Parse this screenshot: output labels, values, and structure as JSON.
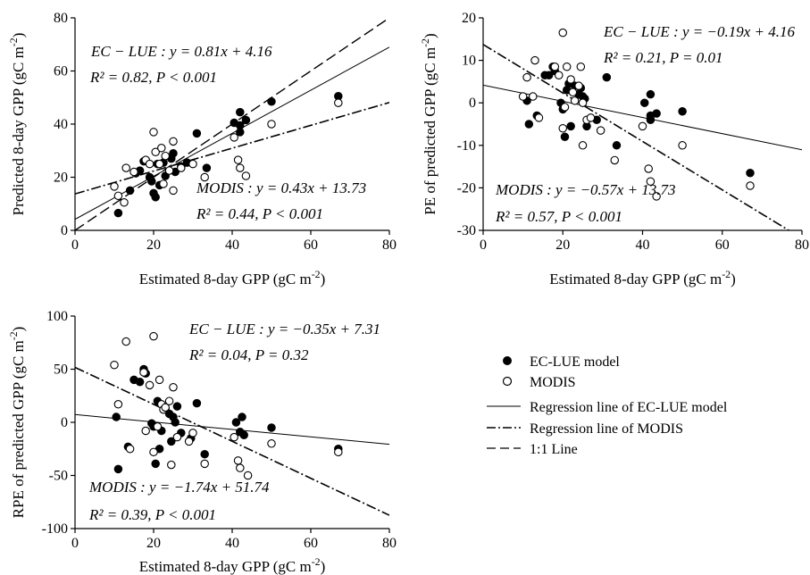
{
  "chart_data": [
    {
      "type": "scatter",
      "xlabel": "Estimated 8-day GPP (gC m-2)",
      "ylabel": "Predicted 8-day GPP (gC m-2)",
      "xlim": [
        0,
        80
      ],
      "ylim": [
        0,
        80
      ],
      "xticks": [
        "0",
        "20",
        "40",
        "60",
        "80"
      ],
      "yticks": [
        "0",
        "20",
        "40",
        "60",
        "80"
      ],
      "series": [
        {
          "name": "EC-LUE model",
          "points": [
            [
              11,
              6.5
            ],
            [
              14,
              15
            ],
            [
              15.5,
              21.5
            ],
            [
              16.5,
              22.5
            ],
            [
              17.5,
              26
            ],
            [
              19,
              20
            ],
            [
              19.5,
              18.5
            ],
            [
              20,
              14
            ],
            [
              20.5,
              12.5
            ],
            [
              21,
              25
            ],
            [
              21.5,
              17
            ],
            [
              22.5,
              25.5
            ],
            [
              23,
              20.5
            ],
            [
              24.5,
              27
            ],
            [
              25,
              29
            ],
            [
              25.5,
              22
            ],
            [
              27,
              24
            ],
            [
              28.5,
              25.5
            ],
            [
              31,
              36.5
            ],
            [
              33.5,
              23.5
            ],
            [
              40.5,
              40.5
            ],
            [
              42,
              37
            ],
            [
              42,
              39.5
            ],
            [
              42,
              44.5
            ],
            [
              43.5,
              41.5
            ],
            [
              50,
              48.5
            ],
            [
              67,
              50.5
            ]
          ]
        },
        {
          "name": "MODIS",
          "points": [
            [
              10,
              16.5
            ],
            [
              11,
              13
            ],
            [
              12.5,
              10.5
            ],
            [
              13,
              23.5
            ],
            [
              15,
              22
            ],
            [
              18,
              26.5
            ],
            [
              19,
              25
            ],
            [
              20,
              37
            ],
            [
              20.5,
              29.5
            ],
            [
              21.5,
              25
            ],
            [
              22,
              31
            ],
            [
              22.5,
              17.5
            ],
            [
              23,
              28
            ],
            [
              24,
              22.5
            ],
            [
              25,
              33.5
            ],
            [
              25,
              15
            ],
            [
              27,
              23.5
            ],
            [
              30,
              25
            ],
            [
              33,
              20
            ],
            [
              40.5,
              35
            ],
            [
              41.5,
              26.5
            ],
            [
              42,
              23.5
            ],
            [
              43.5,
              20.5
            ],
            [
              50,
              40
            ],
            [
              67,
              48
            ]
          ]
        }
      ],
      "lines": [
        {
          "name": "EC-LUE",
          "slope": 0.81,
          "intercept": 4.16,
          "style": "solid"
        },
        {
          "name": "MODIS",
          "slope": 0.43,
          "intercept": 13.73,
          "style": "dashdot"
        },
        {
          "name": "1:1",
          "slope": 1,
          "intercept": 0,
          "style": "dashed"
        }
      ],
      "annotations": [
        {
          "label": "EC − LUE",
          "equation": " : y = 0.81x + 4.16",
          "stats": "R² = 0.82, P < 0.001"
        },
        {
          "label": "MODIS",
          "equation": " : y = 0.43x + 13.73",
          "stats": "R² = 0.44, P < 0.001"
        }
      ]
    },
    {
      "type": "scatter",
      "xlabel": "Estimated 8-day GPP (gC m-2)",
      "ylabel": "PE of predicted GPP (gC m-2)",
      "xlim": [
        0,
        80
      ],
      "ylim": [
        -30,
        20
      ],
      "xticks": [
        "0",
        "20",
        "40",
        "60",
        "80"
      ],
      "yticks": [
        "20",
        "10",
        "0",
        "-10",
        "-20",
        "-30"
      ],
      "series": [
        {
          "name": "EC-LUE model",
          "points": [
            [
              11,
              0.5
            ],
            [
              11.5,
              -5
            ],
            [
              13.5,
              -3
            ],
            [
              15.5,
              6.5
            ],
            [
              16.5,
              6.5
            ],
            [
              17.5,
              8.5
            ],
            [
              18,
              7.5
            ],
            [
              19.5,
              0
            ],
            [
              20,
              -1.5
            ],
            [
              20.5,
              -8
            ],
            [
              21,
              3
            ],
            [
              21.5,
              4.5
            ],
            [
              22,
              -5.5
            ],
            [
              23,
              4
            ],
            [
              24,
              2
            ],
            [
              24.5,
              3.5
            ],
            [
              25,
              1.5
            ],
            [
              25.5,
              1
            ],
            [
              26,
              -5.5
            ],
            [
              28.5,
              -4
            ],
            [
              31,
              6
            ],
            [
              33.5,
              -10
            ],
            [
              40.5,
              0
            ],
            [
              42,
              -4
            ],
            [
              42,
              -3
            ],
            [
              42,
              2
            ],
            [
              43.5,
              -2.5
            ],
            [
              50,
              -2
            ],
            [
              67,
              -16.5
            ]
          ]
        },
        {
          "name": "MODIS",
          "points": [
            [
              10,
              1.5
            ],
            [
              11,
              6
            ],
            [
              12.5,
              1.5
            ],
            [
              13,
              10
            ],
            [
              14,
              -3.5
            ],
            [
              18,
              8.5
            ],
            [
              19,
              6.5
            ],
            [
              20,
              16.5
            ],
            [
              20,
              -6
            ],
            [
              20.5,
              -1
            ],
            [
              21,
              8.5
            ],
            [
              22,
              5.5
            ],
            [
              22.5,
              2.5
            ],
            [
              23,
              0.5
            ],
            [
              24,
              4
            ],
            [
              24.5,
              8.5
            ],
            [
              25,
              -10
            ],
            [
              25,
              0
            ],
            [
              26,
              -4
            ],
            [
              27,
              -3.5
            ],
            [
              29.5,
              -6.5
            ],
            [
              33,
              -13.5
            ],
            [
              40,
              -5.5
            ],
            [
              41.5,
              -15.5
            ],
            [
              42,
              -18.5
            ],
            [
              43.5,
              -22
            ],
            [
              50,
              -10
            ],
            [
              67,
              -19.5
            ]
          ]
        }
      ],
      "lines": [
        {
          "name": "EC-LUE",
          "slope": -0.19,
          "intercept": 4.16,
          "style": "solid"
        },
        {
          "name": "MODIS",
          "slope": -0.57,
          "intercept": 13.73,
          "style": "dashdot"
        }
      ],
      "annotations": [
        {
          "label": "EC − LUE",
          "equation": " : y = −0.19x + 4.16",
          "stats": "R² = 0.21, P = 0.01"
        },
        {
          "label": "MODIS",
          "equation": " : y = −0.57x + 13.73",
          "stats": "R² = 0.57, P < 0.001"
        }
      ]
    },
    {
      "type": "scatter",
      "xlabel": "Estimated 8-day GPP (gC m-2)",
      "ylabel": "RPE of predicted GPP (gC m-2)",
      "xlim": [
        0,
        80
      ],
      "ylim": [
        -100,
        100
      ],
      "xticks": [
        "0",
        "20",
        "40",
        "60",
        "80"
      ],
      "yticks": [
        "100",
        "50",
        "0",
        "-50",
        "-100"
      ],
      "series": [
        {
          "name": "EC-LUE model",
          "points": [
            [
              10.5,
              5
            ],
            [
              11,
              -44
            ],
            [
              13.5,
              -23
            ],
            [
              15,
              40
            ],
            [
              16.5,
              38
            ],
            [
              17.5,
              50
            ],
            [
              18,
              46
            ],
            [
              19.5,
              -1
            ],
            [
              20,
              -4
            ],
            [
              20.5,
              -39
            ],
            [
              21,
              20
            ],
            [
              21.5,
              -25
            ],
            [
              22,
              -8
            ],
            [
              23,
              13
            ],
            [
              24,
              8
            ],
            [
              24.5,
              -18
            ],
            [
              25,
              5
            ],
            [
              25.5,
              0
            ],
            [
              26,
              15
            ],
            [
              27,
              -10
            ],
            [
              29.5,
              -15
            ],
            [
              31,
              18
            ],
            [
              33,
              -30
            ],
            [
              41,
              0
            ],
            [
              42,
              -9
            ],
            [
              42.5,
              5
            ],
            [
              43,
              -12
            ],
            [
              50,
              -5
            ],
            [
              67,
              -25
            ]
          ]
        },
        {
          "name": "MODIS",
          "points": [
            [
              10,
              54
            ],
            [
              11,
              17
            ],
            [
              13,
              76
            ],
            [
              14,
              -25
            ],
            [
              17.5,
              47
            ],
            [
              18,
              -8
            ],
            [
              19,
              35
            ],
            [
              20,
              -28
            ],
            [
              20,
              81
            ],
            [
              21,
              -4
            ],
            [
              21.5,
              40
            ],
            [
              22,
              17
            ],
            [
              22.5,
              12
            ],
            [
              23,
              14
            ],
            [
              24,
              20
            ],
            [
              24.5,
              -40
            ],
            [
              25,
              33
            ],
            [
              26,
              -14
            ],
            [
              29,
              -18
            ],
            [
              30,
              -10
            ],
            [
              33,
              -39
            ],
            [
              40.5,
              -14
            ],
            [
              41.5,
              -36
            ],
            [
              42,
              -43
            ],
            [
              44,
              -50
            ],
            [
              50,
              -20
            ],
            [
              67,
              -28
            ]
          ]
        }
      ],
      "lines": [
        {
          "name": "EC-LUE",
          "slope": -0.35,
          "intercept": 7.31,
          "style": "solid"
        },
        {
          "name": "MODIS",
          "slope": -1.74,
          "intercept": 51.74,
          "style": "dashdot"
        }
      ],
      "annotations": [
        {
          "label": "EC − LUE",
          "equation": " : y = −0.35x + 7.31",
          "stats": "R² = 0.04, P = 0.32"
        },
        {
          "label": "MODIS",
          "equation": " : y = −1.74x + 51.74",
          "stats": "R² = 0.39, P < 0.001"
        }
      ]
    }
  ],
  "legend": {
    "items": [
      {
        "label": "EC-LUE model",
        "kind": "marker-filled"
      },
      {
        "label": "MODIS",
        "kind": "marker-open"
      },
      {
        "label": "Regression line of EC-LUE model",
        "kind": "line-solid"
      },
      {
        "label": "Regression line of MODIS",
        "kind": "line-dashdot"
      },
      {
        "label": "1:1 Line",
        "kind": "line-dashed"
      }
    ]
  }
}
